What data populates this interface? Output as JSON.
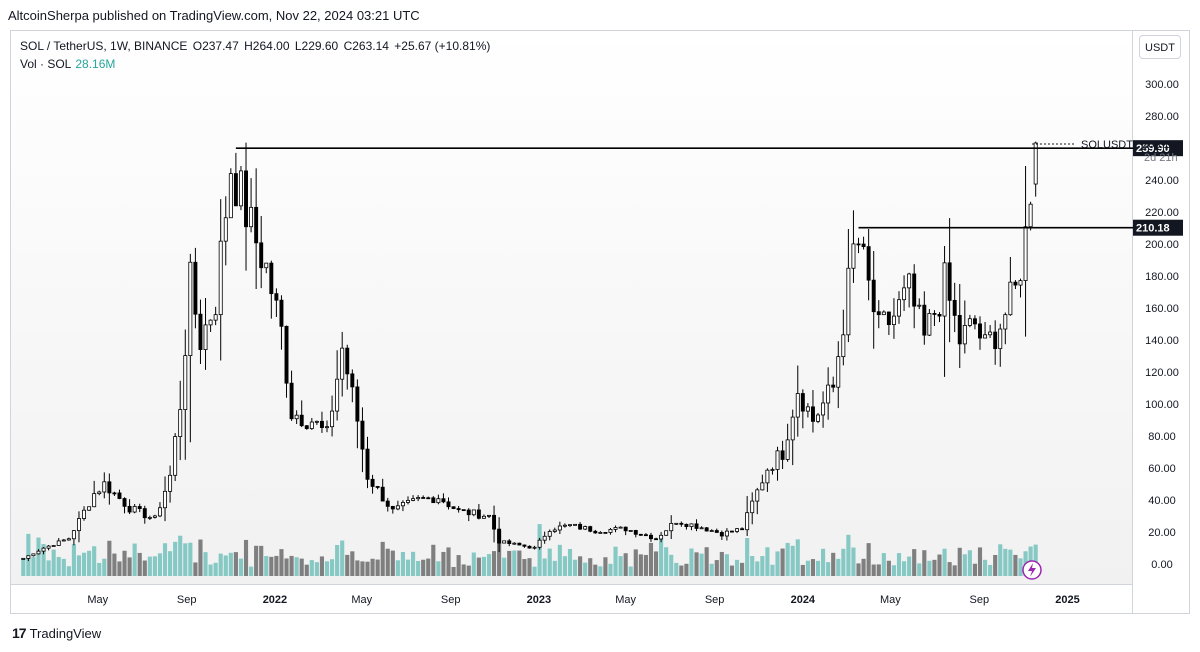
{
  "publish_line": "AltcoinSherpa published on TradingView.com, Nov 22, 2024 03:21 UTC",
  "legend": {
    "symbol": "SOL / TetherUS, 1W, BINANCE",
    "open": "O237.47",
    "high": "H264.00",
    "low": "L229.60",
    "close": "C263.14",
    "change": "+25.67 (+10.81%)",
    "vol_label": "Vol · SOL",
    "vol_value": "28.16M"
  },
  "currency_button": "USDT",
  "footer": {
    "brand": "TradingView",
    "logo_glyph": "17"
  },
  "colors": {
    "up": "#ffffff",
    "down": "#000000",
    "candle_outline": "#000000",
    "vol_up": "#86c9c4",
    "vol_down": "#7f7f7f",
    "price_tag_bg": "#131722",
    "lightning": "#9c27b0"
  },
  "chart_data": {
    "type": "candlestick",
    "title": "SOL / TetherUS, 1W, BINANCE",
    "ylim": [
      -10,
      310
    ],
    "y_ticks": [
      0,
      20,
      40,
      60,
      80,
      100,
      120,
      140,
      160,
      180,
      200,
      220,
      240,
      260,
      280,
      300
    ],
    "y_tick_labels": [
      "0.00",
      "20.00",
      "40.00",
      "60.00",
      "80.00",
      "100.00",
      "120.00",
      "140.00",
      "160.00",
      "180.00",
      "200.00",
      "220.00",
      "240.00",
      "260.00",
      "280.00",
      "300.00"
    ],
    "x_ticks": [
      {
        "label": "May",
        "date": "2021-05-01",
        "bold": false
      },
      {
        "label": "Sep",
        "date": "2021-09-01",
        "bold": false
      },
      {
        "label": "2022",
        "date": "2022-01-01",
        "bold": true
      },
      {
        "label": "May",
        "date": "2022-05-01",
        "bold": false
      },
      {
        "label": "Sep",
        "date": "2022-09-01",
        "bold": false
      },
      {
        "label": "2023",
        "date": "2023-01-01",
        "bold": true
      },
      {
        "label": "May",
        "date": "2023-05-01",
        "bold": false
      },
      {
        "label": "Sep",
        "date": "2023-09-01",
        "bold": false
      },
      {
        "label": "2024",
        "date": "2024-01-01",
        "bold": true
      },
      {
        "label": "May",
        "date": "2024-05-01",
        "bold": false
      },
      {
        "label": "Sep",
        "date": "2024-09-01",
        "bold": false
      },
      {
        "label": "2025",
        "date": "2025-01-01",
        "bold": true
      }
    ],
    "anchors": [
      {
        "date": "2021-01-18",
        "close": 3.5
      },
      {
        "date": "2021-02-15",
        "close": 10
      },
      {
        "date": "2021-03-22",
        "close": 16
      },
      {
        "date": "2021-04-26",
        "close": 44
      },
      {
        "date": "2021-05-10",
        "close": 50
      },
      {
        "date": "2021-06-14",
        "close": 35
      },
      {
        "date": "2021-07-19",
        "close": 28
      },
      {
        "date": "2021-08-09",
        "close": 55
      },
      {
        "date": "2021-08-23",
        "close": 100
      },
      {
        "date": "2021-09-06",
        "close": 175
      },
      {
        "date": "2021-09-20",
        "close": 140
      },
      {
        "date": "2021-10-11",
        "close": 165
      },
      {
        "date": "2021-11-01",
        "close": 250
      },
      {
        "date": "2021-11-08",
        "close": 240
      },
      {
        "date": "2021-11-29",
        "close": 210
      },
      {
        "date": "2021-12-20",
        "close": 185
      },
      {
        "date": "2022-01-10",
        "close": 145
      },
      {
        "date": "2022-01-24",
        "close": 95
      },
      {
        "date": "2022-02-21",
        "close": 90
      },
      {
        "date": "2022-03-14",
        "close": 80
      },
      {
        "date": "2022-04-04",
        "close": 135
      },
      {
        "date": "2022-04-25",
        "close": 90
      },
      {
        "date": "2022-05-09",
        "close": 55
      },
      {
        "date": "2022-06-13",
        "close": 33
      },
      {
        "date": "2022-07-18",
        "close": 40
      },
      {
        "date": "2022-08-15",
        "close": 42
      },
      {
        "date": "2022-09-12",
        "close": 33
      },
      {
        "date": "2022-10-24",
        "close": 30
      },
      {
        "date": "2022-11-07",
        "close": 14
      },
      {
        "date": "2022-12-26",
        "close": 10
      },
      {
        "date": "2023-01-16",
        "close": 22
      },
      {
        "date": "2023-02-13",
        "close": 24
      },
      {
        "date": "2023-03-20",
        "close": 21
      },
      {
        "date": "2023-05-01",
        "close": 22
      },
      {
        "date": "2023-06-12",
        "close": 16
      },
      {
        "date": "2023-07-10",
        "close": 27
      },
      {
        "date": "2023-08-14",
        "close": 23
      },
      {
        "date": "2023-09-11",
        "close": 19
      },
      {
        "date": "2023-10-09",
        "close": 22
      },
      {
        "date": "2023-10-23",
        "close": 38
      },
      {
        "date": "2023-11-13",
        "close": 60
      },
      {
        "date": "2023-12-04",
        "close": 70
      },
      {
        "date": "2023-12-25",
        "close": 110
      },
      {
        "date": "2024-01-15",
        "close": 90
      },
      {
        "date": "2024-02-12",
        "close": 110
      },
      {
        "date": "2024-03-11",
        "close": 195
      },
      {
        "date": "2024-03-18",
        "close": 200
      },
      {
        "date": "2024-04-15",
        "close": 145
      },
      {
        "date": "2024-05-06",
        "close": 155
      },
      {
        "date": "2024-05-27",
        "close": 170
      },
      {
        "date": "2024-06-17",
        "close": 140
      },
      {
        "date": "2024-07-15",
        "close": 175
      },
      {
        "date": "2024-08-05",
        "close": 140
      },
      {
        "date": "2024-08-26",
        "close": 150
      },
      {
        "date": "2024-09-09",
        "close": 135
      },
      {
        "date": "2024-09-30",
        "close": 150
      },
      {
        "date": "2024-10-21",
        "close": 170
      },
      {
        "date": "2024-11-04",
        "close": 205
      },
      {
        "date": "2024-11-11",
        "close": 237.47
      },
      {
        "date": "2024-11-18",
        "close": 263.14
      }
    ],
    "last_candle": {
      "date": "2024-11-18",
      "open": 237.47,
      "high": 264.0,
      "low": 229.6,
      "close": 263.14
    },
    "volume_note": "volume bars drawn in lower pane, scaled to ~0-75 price units",
    "horizontal_lines": [
      {
        "value": 259.9,
        "label": "259.90",
        "from_date": "2021-11-08"
      },
      {
        "value": 210.18,
        "label": "210.18",
        "from_date": "2024-03-18"
      }
    ],
    "last_price": {
      "value": 263.14,
      "label": "263.14",
      "symbol": "SOLUSDT",
      "countdown": "2d 21h"
    }
  }
}
